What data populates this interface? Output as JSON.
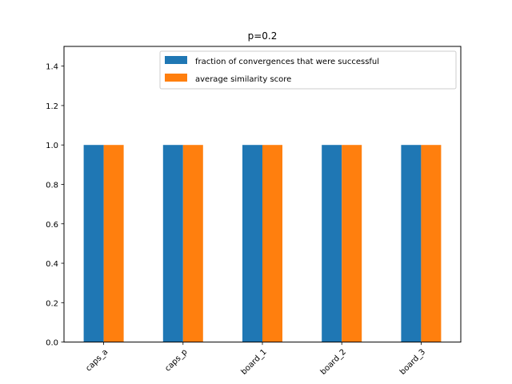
{
  "chart_data": {
    "type": "bar",
    "title": "p=0.2",
    "xlabel": "",
    "ylabel": "",
    "categories": [
      "caps_a",
      "caps_p",
      "board_1",
      "board_2",
      "board_3"
    ],
    "series": [
      {
        "name": "fraction of convergences that were successful",
        "color": "#1f77b4",
        "values": [
          1.0,
          1.0,
          1.0,
          1.0,
          1.0
        ]
      },
      {
        "name": "average similarity score",
        "color": "#ff7f0e",
        "values": [
          1.0,
          1.0,
          1.0,
          1.0,
          1.0
        ]
      }
    ],
    "ylim": [
      0,
      1.5
    ],
    "yticks": [
      "0.0",
      "0.2",
      "0.4",
      "0.6",
      "0.8",
      "1.0",
      "1.2",
      "1.4"
    ],
    "grid": false,
    "legend_position": "top-right"
  }
}
